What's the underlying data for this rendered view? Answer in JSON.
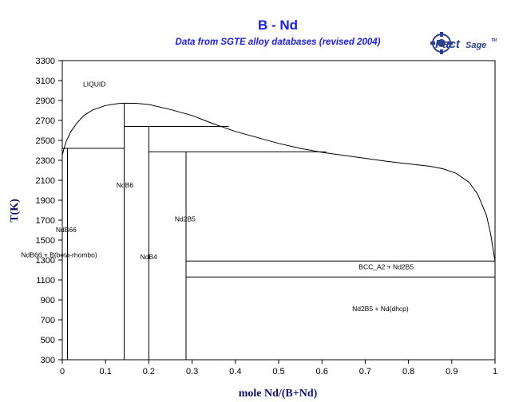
{
  "colors": {
    "title": "#1a1aff",
    "axis_title": "#101070",
    "line": "#000000",
    "logo": "#2a3f8f"
  },
  "logo": {
    "name": "FactSage",
    "word_fact": "Fact",
    "word_sage": "Sage",
    "trademark": "TM",
    "icon": "factsage-logo-icon"
  },
  "chart_data": {
    "type": "phase-diagram",
    "title": "B - Nd",
    "subtitle": "Data from SGTE alloy databases (revised 2004)",
    "xlabel": "mole Nd/(B+Nd)",
    "ylabel": "T(K)",
    "xlim": [
      0,
      1
    ],
    "ylim": [
      300,
      3300
    ],
    "x_ticks": [
      0,
      0.1,
      0.2,
      0.3,
      0.4,
      0.5,
      0.6,
      0.7,
      0.8,
      0.9,
      1
    ],
    "x_tick_labels": [
      "0",
      "0.1",
      "0.2",
      "0.3",
      "0.4",
      "0.5",
      "0.6",
      "0.7",
      "0.8",
      "0.9",
      "1"
    ],
    "y_ticks": [
      300,
      500,
      700,
      900,
      1100,
      1300,
      1500,
      1700,
      1900,
      2100,
      2300,
      2500,
      2700,
      2900,
      3100,
      3300
    ],
    "y_tick_labels": [
      "300",
      "500",
      "700",
      "900",
      "1100",
      "1300",
      "1500",
      "1700",
      "1900",
      "2100",
      "2300",
      "2500",
      "2700",
      "2900",
      "3100",
      "3300"
    ],
    "grid": false,
    "liquidus": [
      [
        0.0,
        2350
      ],
      [
        0.004,
        2420
      ],
      [
        0.01,
        2500
      ],
      [
        0.02,
        2590
      ],
      [
        0.035,
        2680
      ],
      [
        0.05,
        2750
      ],
      [
        0.07,
        2805
      ],
      [
        0.1,
        2850
      ],
      [
        0.13,
        2870
      ],
      [
        0.143,
        2873
      ],
      [
        0.17,
        2872
      ],
      [
        0.2,
        2860
      ],
      [
        0.25,
        2810
      ],
      [
        0.3,
        2750
      ],
      [
        0.35,
        2665
      ],
      [
        0.4,
        2590
      ],
      [
        0.45,
        2530
      ],
      [
        0.5,
        2470
      ],
      [
        0.55,
        2420
      ],
      [
        0.6,
        2380
      ],
      [
        0.65,
        2350
      ],
      [
        0.7,
        2320
      ],
      [
        0.75,
        2290
      ],
      [
        0.8,
        2265
      ],
      [
        0.85,
        2240
      ],
      [
        0.88,
        2215
      ],
      [
        0.91,
        2170
      ],
      [
        0.94,
        2080
      ],
      [
        0.96,
        1960
      ],
      [
        0.98,
        1750
      ],
      [
        0.99,
        1560
      ],
      [
        0.995,
        1420
      ],
      [
        1.0,
        1290
      ]
    ],
    "phase_lines": [
      {
        "name": "NdB66 line",
        "points": [
          [
            0.012,
            300
          ],
          [
            0.012,
            2420
          ]
        ]
      },
      {
        "name": "NdB6 line",
        "points": [
          [
            0.143,
            300
          ],
          [
            0.143,
            2873
          ]
        ]
      },
      {
        "name": "NdB4 line",
        "points": [
          [
            0.2,
            300
          ],
          [
            0.2,
            2640
          ]
        ]
      },
      {
        "name": "Nd2B5 line",
        "points": [
          [
            0.286,
            300
          ],
          [
            0.286,
            2385
          ]
        ]
      },
      {
        "name": "eutectic B-NdB6",
        "points": [
          [
            0.0,
            2420
          ],
          [
            0.143,
            2420
          ]
        ]
      },
      {
        "name": "peritectic NdB4",
        "points": [
          [
            0.143,
            2640
          ],
          [
            0.385,
            2640
          ]
        ]
      },
      {
        "name": "peritectic Nd2B5",
        "points": [
          [
            0.2,
            2385
          ],
          [
            0.61,
            2385
          ]
        ]
      },
      {
        "name": "eutectic BCC",
        "points": [
          [
            0.286,
            1290
          ],
          [
            1.0,
            1290
          ]
        ]
      },
      {
        "name": "BCC-dhcp transition",
        "points": [
          [
            0.286,
            1130
          ],
          [
            1.0,
            1130
          ]
        ]
      }
    ],
    "labels": [
      {
        "text": "LIQUID",
        "x": 0.048,
        "y": 3040
      },
      {
        "text": "NdB6",
        "x": 0.125,
        "y": 2030
      },
      {
        "text": "NdB66",
        "x": -0.015,
        "y": 1580
      },
      {
        "text": "Nd2B5",
        "x": 0.26,
        "y": 1690
      },
      {
        "text": "NdB66 + B(beta-rhombo)",
        "x": -0.095,
        "y": 1330
      },
      {
        "text": "NdB4",
        "x": 0.18,
        "y": 1310
      },
      {
        "text": "BCC_A2 + Nd2B5",
        "x": 0.685,
        "y": 1210
      },
      {
        "text": "Nd2B5 + Nd(dhcp)",
        "x": 0.67,
        "y": 790
      }
    ]
  }
}
